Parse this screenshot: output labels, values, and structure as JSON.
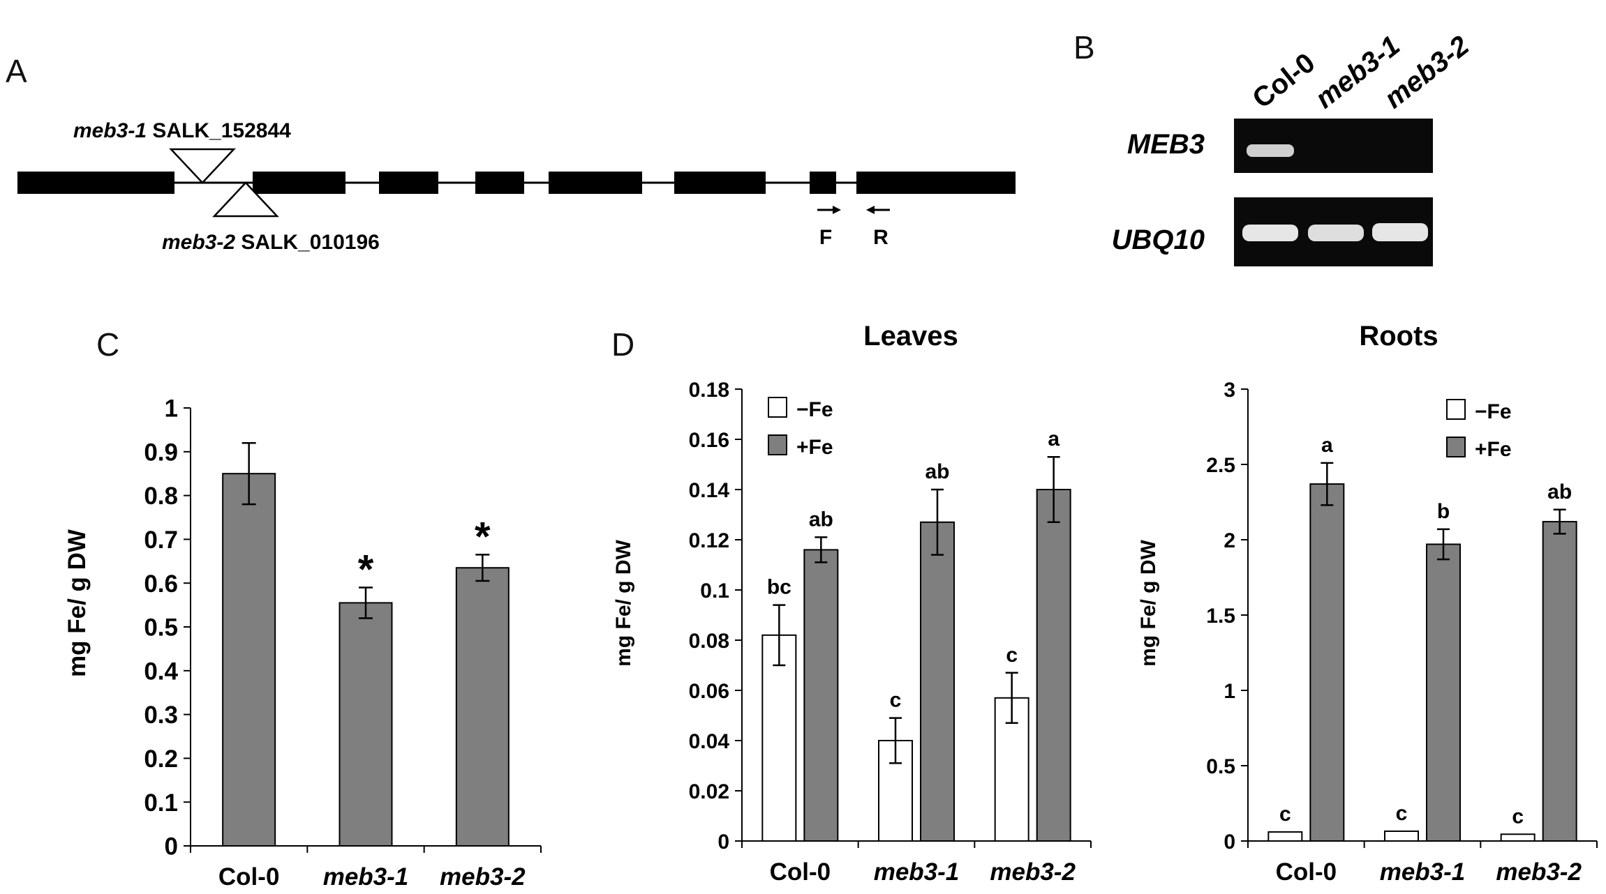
{
  "panel_labels": {
    "a": "A",
    "b": "B",
    "c": "C",
    "d": "D"
  },
  "gene_model": {
    "insertions": [
      {
        "allele": "meb3-1",
        "line": "SALK_152844"
      },
      {
        "allele": "meb3-2",
        "line": "SALK_010196"
      }
    ],
    "primer_forward": "F",
    "primer_reverse": "R"
  },
  "gel": {
    "lanes": [
      "Col-0",
      "meb3-1",
      "meb3-2"
    ],
    "rows": [
      "MEB3",
      "UBQ10"
    ]
  },
  "colors": {
    "filled_bar": "#7f7f7f",
    "open_bar": "#ffffff",
    "gel_bg": "#0a0a0a"
  },
  "chart_data": [
    {
      "type": "bar",
      "categories": [
        "Col-0",
        "meb3-1",
        "meb3-2"
      ],
      "values": [
        0.85,
        0.555,
        0.635
      ],
      "errors": [
        0.07,
        0.035,
        0.03
      ],
      "annotations": [
        "",
        "*",
        "*"
      ],
      "ylabel": "mg Fe/ g DW",
      "ylim": [
        0,
        1
      ],
      "yticks": [
        "0",
        "0.1",
        "0.2",
        "0.3",
        "0.4",
        "0.5",
        "0.6",
        "0.7",
        "0.8",
        "0.9",
        "1"
      ],
      "grid": false
    },
    {
      "type": "bar",
      "title": "Leaves",
      "categories": [
        "Col-0",
        "meb3-1",
        "meb3-2"
      ],
      "series": [
        {
          "name": "−Fe",
          "values": [
            0.082,
            0.04,
            0.057
          ],
          "errors": [
            0.012,
            0.009,
            0.01
          ],
          "labels": [
            "bc",
            "c",
            "c"
          ]
        },
        {
          "name": "+Fe",
          "values": [
            0.116,
            0.127,
            0.14
          ],
          "errors": [
            0.005,
            0.013,
            0.013
          ],
          "labels": [
            "ab",
            "ab",
            "a"
          ]
        }
      ],
      "ylabel": "mg Fe/ g DW",
      "ylim": [
        0,
        0.18
      ],
      "yticks": [
        "0",
        "0.02",
        "0.04",
        "0.06",
        "0.08",
        "0.1",
        "0.12",
        "0.14",
        "0.16",
        "0.18"
      ],
      "legend": "top-left",
      "grid": false
    },
    {
      "type": "bar",
      "title": "Roots",
      "categories": [
        "Col-0",
        "meb3-1",
        "meb3-2"
      ],
      "series": [
        {
          "name": "−Fe",
          "values": [
            0.06,
            0.065,
            0.045
          ],
          "errors": [
            0,
            0,
            0
          ],
          "labels": [
            "c",
            "c",
            "c"
          ]
        },
        {
          "name": "+Fe",
          "values": [
            2.37,
            1.97,
            2.12
          ],
          "errors": [
            0.14,
            0.1,
            0.08
          ],
          "labels": [
            "a",
            "b",
            "ab"
          ]
        }
      ],
      "ylabel": "mg Fe/ g DW",
      "ylim": [
        0,
        3
      ],
      "yticks": [
        "0",
        "0.5",
        "1",
        "1.5",
        "2",
        "2.5",
        "3"
      ],
      "legend": "top-right",
      "grid": false
    }
  ]
}
